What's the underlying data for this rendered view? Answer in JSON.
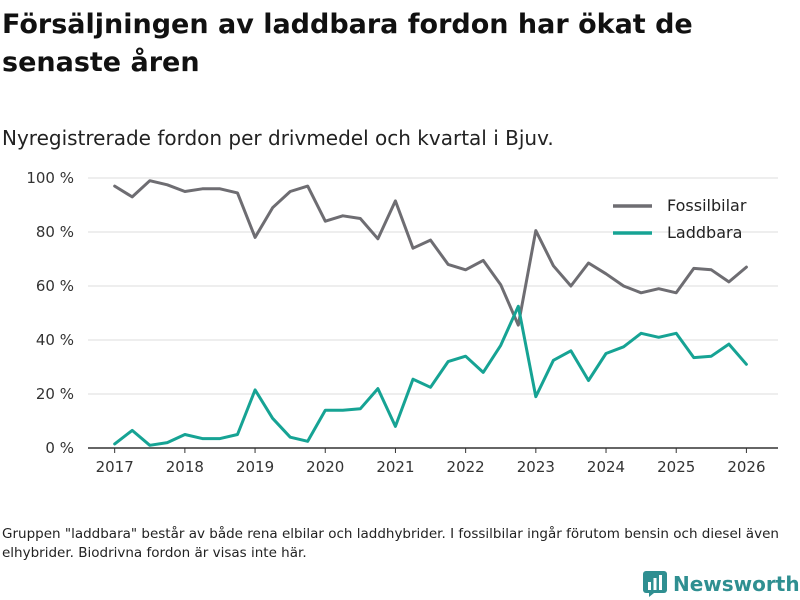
{
  "title": "Försäljningen av laddbara fordon har ökat de senaste åren",
  "subtitle": "Nyregistrerade fordon per drivmedel och kvartal i Bjuv.",
  "footnote": "Gruppen \"laddbara\" består av både rena elbilar och laddhybrider. I fossilbilar ingår förutom bensin och diesel även elhybrider. Biodrivna fordon är visas inte här.",
  "brand": {
    "name": "Newsworthy",
    "color": "#2f8f91"
  },
  "chart_data": {
    "type": "line",
    "title": "Försäljningen av laddbara fordon har ökat de senaste åren",
    "subtitle": "Nyregistrerade fordon per drivmedel och kvartal i Bjuv.",
    "xlabel": "",
    "ylabel": "",
    "xlim": [
      2016.62,
      2026.45
    ],
    "ylim": [
      0,
      100
    ],
    "x_ticks": [
      2017,
      2018,
      2019,
      2020,
      2021,
      2022,
      2023,
      2024,
      2025,
      2026
    ],
    "x_tick_labels": [
      "2017",
      "2018",
      "2019",
      "2020",
      "2021",
      "2022",
      "2023",
      "2024",
      "2025",
      "2026"
    ],
    "y_ticks": [
      0,
      20,
      40,
      60,
      80,
      100
    ],
    "y_tick_labels": [
      "0 %",
      "20 %",
      "40 %",
      "60 %",
      "80 %",
      "100 %"
    ],
    "grid": "horizontal",
    "legend_position": "top-right",
    "x": [
      2017,
      2017.25,
      2017.5,
      2017.75,
      2018,
      2018.25,
      2018.5,
      2018.75,
      2019,
      2019.25,
      2019.5,
      2019.75,
      2020,
      2020.25,
      2020.5,
      2020.75,
      2021,
      2021.25,
      2021.5,
      2021.75,
      2022,
      2022.25,
      2022.5,
      2022.75,
      2023,
      2023.25,
      2023.5,
      2023.75,
      2024,
      2024.25,
      2024.5,
      2024.75,
      2025,
      2025.25,
      2025.5,
      2025.75,
      2026
    ],
    "series": [
      {
        "name": "Fossilbilar",
        "color": "#6e6d72",
        "values": [
          97,
          93,
          99,
          97.5,
          95,
          96,
          96,
          94.5,
          78,
          89,
          95,
          97,
          84,
          86,
          85,
          77.5,
          91.5,
          74,
          77,
          68,
          66,
          69.5,
          60.5,
          45.5,
          80.5,
          67.5,
          60,
          68.5,
          64.5,
          60,
          57.5,
          59,
          57.5,
          66.5,
          66,
          61.5,
          67
        ]
      },
      {
        "name": "Laddbara",
        "color": "#16a394",
        "values": [
          1.5,
          6.5,
          1,
          2,
          5,
          3.5,
          3.5,
          5,
          21.5,
          11,
          4,
          2.5,
          14,
          14,
          14.5,
          22,
          8,
          25.5,
          22.5,
          32,
          34,
          28,
          38,
          52.5,
          19,
          32.5,
          36,
          25,
          35,
          37.5,
          42.5,
          41,
          42.5,
          33.5,
          34,
          38.5,
          31
        ]
      }
    ]
  }
}
